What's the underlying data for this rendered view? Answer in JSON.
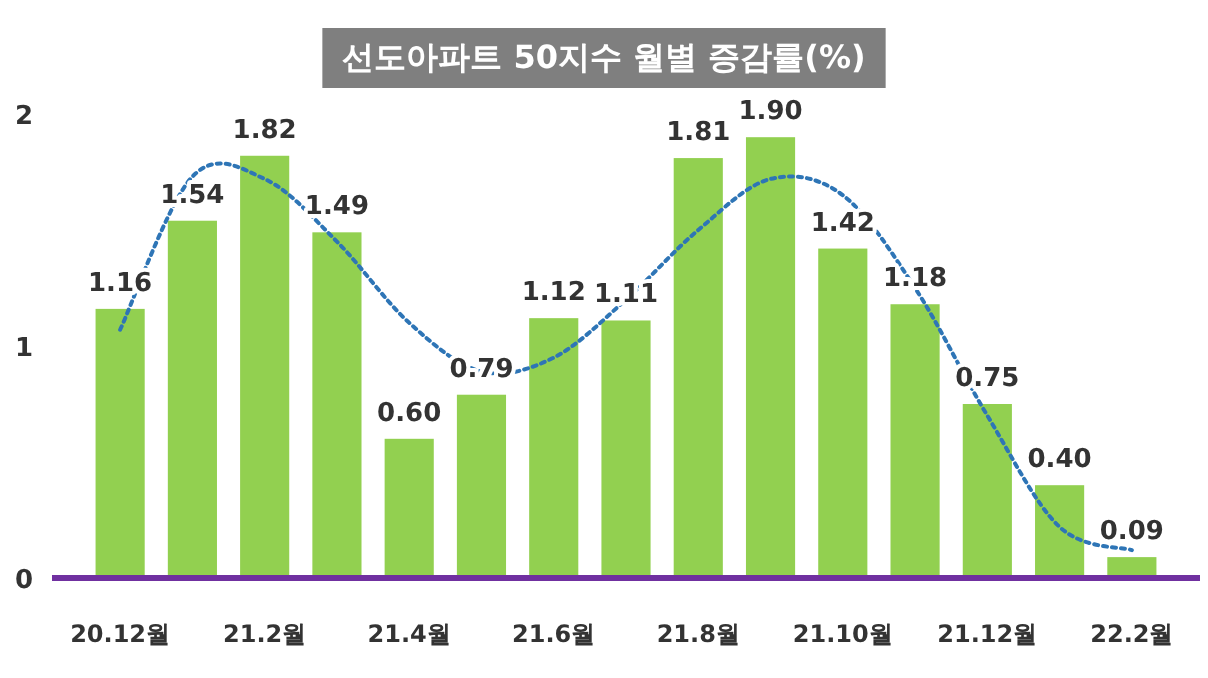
{
  "chart_data": {
    "type": "bar",
    "title": "선도아파트 50지수 월별 증감률(%)",
    "categories": [
      "20.12월",
      null,
      "21.2월",
      null,
      "21.4월",
      null,
      "21.6월",
      null,
      "21.8월",
      null,
      "21.10월",
      null,
      "21.12월",
      null,
      "22.2월"
    ],
    "series": [
      {
        "color": "#92d050",
        "values": [
          1.16,
          1.54,
          1.82,
          1.49,
          0.6,
          0.79,
          1.12,
          1.11,
          1.81,
          1.9,
          1.42,
          1.18,
          0.75,
          0.4,
          0.09
        ],
        "value_labels": [
          "1.16",
          "1.54",
          "1.82",
          "1.49",
          "0.60",
          "0.79",
          "1.12",
          "1.11",
          "1.81",
          "1.90",
          "1.42",
          "1.18",
          "0.75",
          "0.40",
          "0.09"
        ]
      },
      {
        "type": "line",
        "color": "#2e75b6",
        "line_style": "dotted",
        "values": [
          1.07,
          1.73,
          1.72,
          1.45,
          1.1,
          0.89,
          0.95,
          1.2,
          1.5,
          1.72,
          1.65,
          1.25,
          0.7,
          0.22,
          0.12
        ]
      }
    ],
    "ylim": [
      0,
      2
    ],
    "yticks": [
      0,
      1,
      2
    ],
    "grid": false
  }
}
